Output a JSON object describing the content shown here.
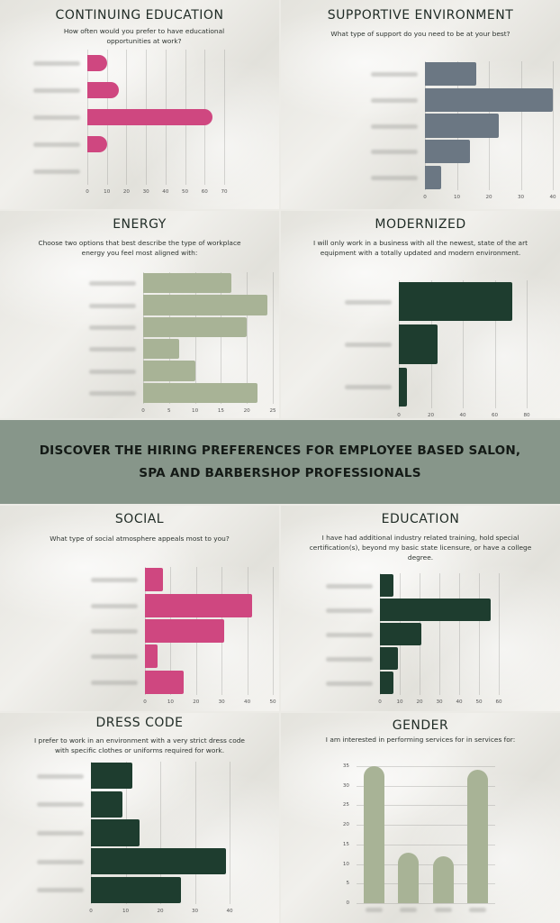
{
  "banner": {
    "text": "DISCOVER THE HIRING PREFERENCES FOR EMPLOYEE BASED SALON, SPA AND BARBERSHOP PROFESSIONALS"
  },
  "colors": {
    "pink": "#cf4780",
    "slate": "#6b7783",
    "sage": "#a8b396",
    "dark_green": "#1e3d2f",
    "banner": "#87968a"
  },
  "panels": {
    "continuing_education": {
      "title": "CONTINUING EDUCATION",
      "subtitle": "How often would you prefer to have educational opportunities at work?"
    },
    "supportive_environment": {
      "title": "SUPPORTIVE ENVIRONMENT",
      "subtitle": "What type of support do you need to be at your best?"
    },
    "energy": {
      "title": "ENERGY",
      "subtitle": "Choose two options that best describe the type of workplace energy you feel most aligned with:"
    },
    "modernized": {
      "title": "MODERNIZED",
      "subtitle": "I will only work in a business with all the newest, state of the art equipment with a totally updated and modern environment."
    },
    "social": {
      "title": "SOCIAL",
      "subtitle": "What type of social atmosphere appeals most to you?"
    },
    "education": {
      "title": "EDUCATION",
      "subtitle": "I have had additional industry related training, hold special certification(s), beyond my basic state licensure, or have a college degree."
    },
    "dress_code": {
      "title": "DRESS CODE",
      "subtitle": "I prefer to work in an environment with a very strict dress code with specific clothes or uniforms required for work."
    },
    "gender": {
      "title": "GENDER",
      "subtitle": "I am interested in performing services for in services for:"
    }
  },
  "chart_data": [
    {
      "id": "continuing_education",
      "type": "bar",
      "orientation": "horizontal",
      "title": "CONTINUING EDUCATION",
      "subtitle": "How often would you prefer to have educational opportunities at work?",
      "categories": [
        "(blurred 1)",
        "(blurred 2)",
        "(blurred 3)",
        "(blurred 4)",
        "(blurred 5)"
      ],
      "values": [
        10,
        16,
        64,
        10,
        0
      ],
      "xticks": [
        0,
        10,
        20,
        30,
        40,
        50,
        60,
        70
      ],
      "xlim": [
        0,
        70
      ],
      "color": "#cf4780",
      "bar_style": "rounded-end",
      "grid": true
    },
    {
      "id": "supportive_environment",
      "type": "bar",
      "orientation": "horizontal",
      "title": "SUPPORTIVE ENVIRONMENT",
      "subtitle": "What type of support do you need to be at your best?",
      "categories": [
        "(blurred 1)",
        "(blurred 2)",
        "(blurred 3)",
        "(blurred 4)",
        "(blurred 5)"
      ],
      "values": [
        16,
        40,
        23,
        14,
        5
      ],
      "xticks": [
        0,
        10,
        20,
        30,
        40
      ],
      "xlim": [
        0,
        40
      ],
      "color": "#6b7783",
      "grid": true
    },
    {
      "id": "energy",
      "type": "bar",
      "orientation": "horizontal",
      "title": "ENERGY",
      "subtitle": "Choose two options that best describe the type of workplace energy you feel most aligned with:",
      "categories": [
        "(blurred 1)",
        "(blurred 2)",
        "(blurred 3)",
        "(blurred 4)",
        "(blurred 5)",
        "(blurred 6)"
      ],
      "values": [
        17,
        24,
        20,
        7,
        10,
        22
      ],
      "xticks": [
        0,
        5,
        10,
        15,
        20,
        25
      ],
      "xlim": [
        0,
        25
      ],
      "color": "#a8b396",
      "grid": true
    },
    {
      "id": "modernized",
      "type": "bar",
      "orientation": "horizontal",
      "title": "MODERNIZED",
      "subtitle": "I will only work in a business with all the newest, state of the art equipment with a totally updated and modern environment.",
      "categories": [
        "(blurred 1)",
        "(blurred 2)",
        "(blurred 3)"
      ],
      "values": [
        71,
        24,
        5
      ],
      "xticks": [
        0,
        20,
        40,
        60,
        80
      ],
      "xlim": [
        0,
        80
      ],
      "color": "#1e3d2f",
      "grid": true
    },
    {
      "id": "social",
      "type": "bar",
      "orientation": "horizontal",
      "title": "SOCIAL",
      "subtitle": "What type of social atmosphere appeals most to you?",
      "categories": [
        "(blurred 1)",
        "(blurred 2)",
        "(blurred 3)",
        "(blurred 4)",
        "(blurred 5)"
      ],
      "values": [
        7,
        42,
        31,
        5,
        15
      ],
      "xticks": [
        0,
        10,
        20,
        30,
        40,
        50
      ],
      "xlim": [
        0,
        50
      ],
      "color": "#cf4780",
      "grid": true
    },
    {
      "id": "education",
      "type": "bar",
      "orientation": "horizontal",
      "title": "EDUCATION",
      "subtitle": "I have had additional industry related training, hold special certification(s), beyond my basic state licensure, or have a college degree.",
      "categories": [
        "(blurred 1)",
        "(blurred 2)",
        "(blurred 3)",
        "(blurred 4)",
        "(blurred 5)"
      ],
      "values": [
        7,
        56,
        21,
        9,
        7
      ],
      "xticks": [
        0,
        10,
        20,
        30,
        40,
        50,
        60
      ],
      "xlim": [
        0,
        60
      ],
      "color": "#1e3d2f",
      "grid": true
    },
    {
      "id": "dress_code",
      "type": "bar",
      "orientation": "horizontal",
      "title": "DRESS CODE",
      "subtitle": "I prefer to work in an environment with a very strict dress code with specific clothes or uniforms required for work.",
      "categories": [
        "(blurred 1)",
        "(blurred 2)",
        "(blurred 3)",
        "(blurred 4)",
        "(blurred 5)"
      ],
      "values": [
        12,
        9,
        14,
        39,
        26
      ],
      "xticks": [
        0,
        10,
        20,
        30,
        40
      ],
      "xlim": [
        0,
        40
      ],
      "color": "#1e3d2f",
      "grid": true
    },
    {
      "id": "gender",
      "type": "bar",
      "orientation": "vertical",
      "title": "GENDER",
      "subtitle": "I am interested in performing services for in services for:",
      "categories": [
        "(blurred 1)",
        "(blurred 2)",
        "(blurred 3)",
        "(blurred 4)"
      ],
      "values": [
        35,
        13,
        12,
        34
      ],
      "yticks": [
        0,
        5,
        10,
        15,
        20,
        25,
        30,
        35
      ],
      "ylim": [
        0,
        35
      ],
      "color": "#a8b396",
      "bar_style": "rounded-top",
      "grid": true
    }
  ]
}
